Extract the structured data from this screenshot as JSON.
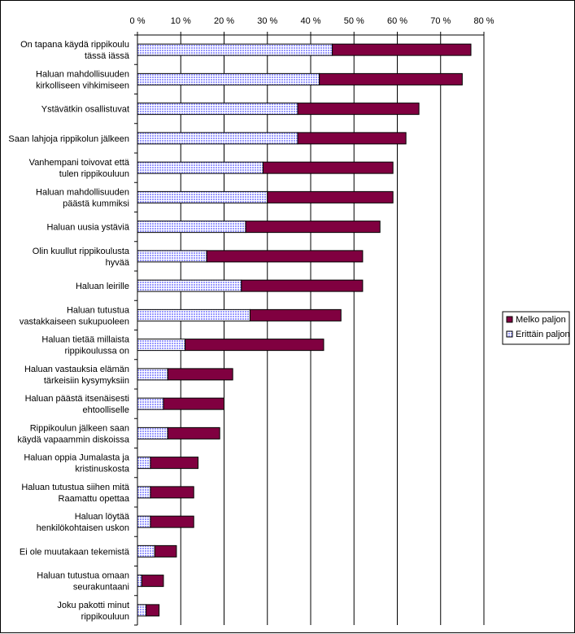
{
  "chart_data": {
    "type": "bar",
    "orientation": "horizontal",
    "stacked": true,
    "xlim": [
      0,
      80
    ],
    "ticks": [
      "0 %",
      "10 %",
      "20 %",
      "30 %",
      "40 %",
      "50 %",
      "60 %",
      "70 %",
      "80 %"
    ],
    "grid": "vertical",
    "legend_position": "right",
    "categories": [
      [
        "On tapana käydä rippikoulu",
        "tässä iässä"
      ],
      [
        "Haluan mahdollisuuden",
        "kirkolliseen vihkimiseen"
      ],
      [
        "Ystävätkin osallistuvat"
      ],
      [
        "Saan lahjoja rippikolun jälkeen"
      ],
      [
        "Vanhempani toivovat että",
        "tulen rippikouluun"
      ],
      [
        "Haluan mahdollisuuden",
        "päästä kummiksi"
      ],
      [
        "Haluan uusia ystäviä"
      ],
      [
        "Olin kuullut rippikoulusta",
        "hyvää"
      ],
      [
        "Haluan leirille"
      ],
      [
        "Haluan tutustua",
        "vastakkaiseen sukupuoleen"
      ],
      [
        "Haluan tietää millaista",
        "rippikoulussa on"
      ],
      [
        "Haluan vastauksia elämän",
        "tärkeisiin kysymyksiin"
      ],
      [
        "Haluan päästä itsenäisesti",
        "ehtoolliselle"
      ],
      [
        "Rippikoulun jälkeen saan",
        "käydä vapaammin diskoissa"
      ],
      [
        "Haluan oppia Jumalasta ja",
        "kristinuskosta"
      ],
      [
        "Haluan tutustua siihen mitä",
        "Raamattu opettaa"
      ],
      [
        "Haluan löytää",
        "henkilökohtaisen uskon"
      ],
      [
        "Ei ole muutakaan tekemistä"
      ],
      [
        "Haluan tutustua omaan",
        "seurakuntaani"
      ],
      [
        "Joku pakotti minut",
        "rippikouluun"
      ]
    ],
    "series": [
      {
        "name": "Erittäin paljon",
        "color": "#9999ff",
        "pattern": "checkered",
        "values": [
          45,
          42,
          37,
          37,
          29,
          30,
          25,
          16,
          24,
          26,
          11,
          7,
          6,
          7,
          3,
          3,
          3,
          4,
          1,
          2
        ]
      },
      {
        "name": "Melko paljon",
        "color": "#800040",
        "pattern": "solid",
        "values": [
          32,
          33,
          28,
          25,
          30,
          29,
          31,
          36,
          28,
          21,
          32,
          15,
          14,
          12,
          11,
          10,
          10,
          5,
          5,
          3
        ]
      }
    ],
    "legend_order": [
      "Melko paljon",
      "Erittäin paljon"
    ]
  }
}
